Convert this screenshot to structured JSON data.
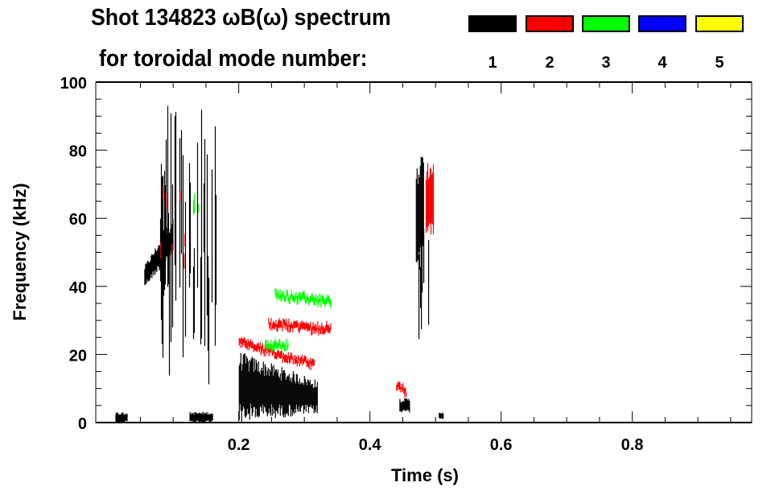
{
  "title_line1": "Shot 134823 ωB(ω) spectrum",
  "title_line2": "for toroidal mode number:",
  "legend": [
    {
      "label": "1",
      "color": "#000000"
    },
    {
      "label": "2",
      "color": "#ff0000"
    },
    {
      "label": "3",
      "color": "#00ff00"
    },
    {
      "label": "4",
      "color": "#0000ff"
    },
    {
      "label": "5",
      "color": "#ffff00"
    }
  ],
  "chart_data": {
    "type": "heatmap",
    "title": "Shot 134823 ωB(ω) spectrum for toroidal mode number",
    "xlabel": "Time (s)",
    "ylabel": "Frequency (kHz)",
    "xlim": [
      -0.018,
      0.982
    ],
    "ylim": [
      0,
      100
    ],
    "xticks": [
      "0.2",
      "0.4",
      "0.6",
      "0.8"
    ],
    "xtick_values": [
      0.2,
      0.4,
      0.6,
      0.8
    ],
    "yticks": [
      "0",
      "20",
      "40",
      "60",
      "80",
      "100"
    ],
    "ytick_values": [
      0,
      20,
      40,
      60,
      80,
      100
    ],
    "features": [
      {
        "mode": 1,
        "t": [
          0.056,
          0.1
        ],
        "f_start": [
          40,
          46
        ],
        "f_end": [
          50,
          60
        ],
        "kind": "blob"
      },
      {
        "mode": 1,
        "t": [
          0.08,
          0.165
        ],
        "f_start": [
          10,
          100
        ],
        "f_end": [
          10,
          90
        ],
        "kind": "streaks"
      },
      {
        "mode": 1,
        "t": [
          0.2,
          0.32
        ],
        "f_start": [
          1,
          20
        ],
        "f_end": [
          3,
          12
        ],
        "kind": "blob"
      },
      {
        "mode": 1,
        "t": [
          0.125,
          0.16
        ],
        "f_start": [
          0,
          3
        ],
        "f_end": [
          0,
          3
        ],
        "kind": "blob"
      },
      {
        "mode": 1,
        "t": [
          0.012,
          0.03
        ],
        "f_start": [
          0,
          3
        ],
        "f_end": [
          0,
          3
        ],
        "kind": "blob"
      },
      {
        "mode": 1,
        "t": [
          0.445,
          0.46
        ],
        "f_start": [
          3,
          7
        ],
        "f_end": [
          3,
          7
        ],
        "kind": "blob"
      },
      {
        "mode": 1,
        "t": [
          0.47,
          0.482
        ],
        "f_start": [
          45,
          78
        ],
        "f_end": [
          45,
          78
        ],
        "kind": "blob"
      },
      {
        "mode": 1,
        "t": [
          0.474,
          0.49
        ],
        "f_start": [
          22,
          60
        ],
        "f_end": [
          22,
          60
        ],
        "kind": "streaks"
      },
      {
        "mode": 1,
        "t": [
          0.505,
          0.512
        ],
        "f_start": [
          1,
          3
        ],
        "f_end": [
          1,
          3
        ],
        "kind": "blob"
      },
      {
        "mode": 2,
        "t": [
          0.2,
          0.315
        ],
        "f_start": [
          22,
          25
        ],
        "f_end": [
          16,
          18
        ],
        "kind": "band"
      },
      {
        "mode": 2,
        "t": [
          0.245,
          0.34
        ],
        "f_start": [
          28,
          30
        ],
        "f_end": [
          24,
          31
        ],
        "kind": "band"
      },
      {
        "mode": 2,
        "t": [
          0.485,
          0.497
        ],
        "f_start": [
          56,
          76
        ],
        "f_end": [
          56,
          76
        ],
        "kind": "blob"
      },
      {
        "mode": 2,
        "t": [
          0.44,
          0.455
        ],
        "f_start": [
          9,
          12
        ],
        "f_end": [
          8,
          10
        ],
        "kind": "band"
      },
      {
        "mode": 2,
        "t": [
          0.078,
          0.12
        ],
        "f_start": [
          45,
          70
        ],
        "f_end": [
          45,
          70
        ],
        "kind": "sparse"
      },
      {
        "mode": 3,
        "t": [
          0.255,
          0.34
        ],
        "f_start": [
          37,
          38
        ],
        "f_end": [
          35,
          36
        ],
        "kind": "band"
      },
      {
        "mode": 3,
        "t": [
          0.24,
          0.275
        ],
        "f_start": [
          22,
          23
        ],
        "f_end": [
          22,
          23
        ],
        "kind": "band"
      },
      {
        "mode": 3,
        "t": [
          0.128,
          0.14
        ],
        "f_start": [
          60,
          64
        ],
        "f_end": [
          60,
          64
        ],
        "kind": "sparse"
      }
    ]
  }
}
